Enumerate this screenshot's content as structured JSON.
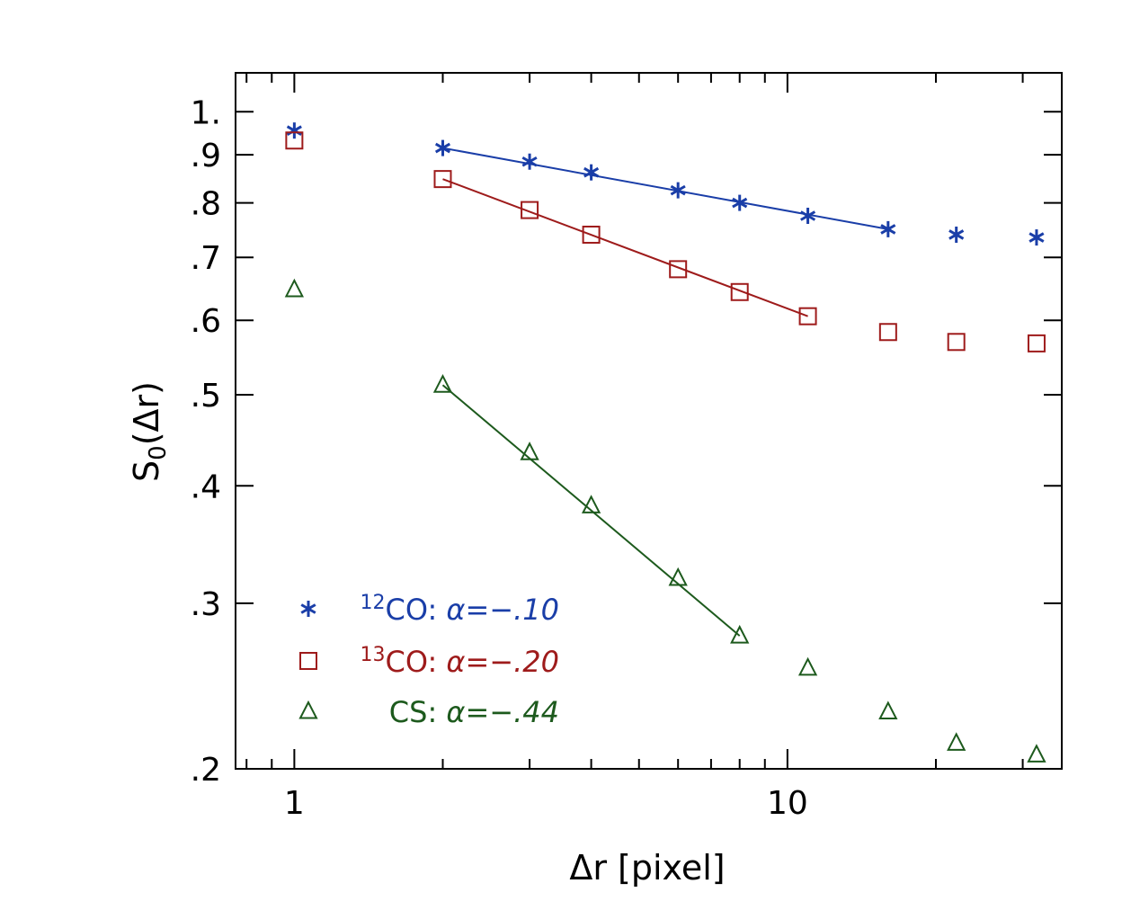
{
  "chart_data": {
    "type": "scatter",
    "title": "",
    "xlabel": "Δr [pixel]",
    "ylabel_main": "S",
    "ylabel_sub": "0",
    "ylabel_tail": "(Δr)",
    "xscale": "log",
    "yscale": "log",
    "xlim": [
      0.76,
      36
    ],
    "ylim": [
      0.2,
      1.1
    ],
    "x_ticks": [
      {
        "value": 1,
        "label": "1"
      },
      {
        "value": 10,
        "label": "10"
      }
    ],
    "y_ticks": [
      {
        "value": 0.2,
        "label": ".2"
      },
      {
        "value": 0.3,
        "label": ".3"
      },
      {
        "value": 0.4,
        "label": ".4"
      },
      {
        "value": 0.5,
        "label": ".5"
      },
      {
        "value": 0.6,
        "label": ".6"
      },
      {
        "value": 0.7,
        "label": ".7"
      },
      {
        "value": 0.8,
        "label": ".8"
      },
      {
        "value": 0.9,
        "label": ".9"
      },
      {
        "value": 1.0,
        "label": "1."
      }
    ],
    "legend_position": "bottom-left",
    "series": [
      {
        "name": "12CO",
        "legend_sup": "12",
        "legend_label": "CO: ",
        "legend_alpha": "α=−.10",
        "color": "#1a3ea8",
        "marker": "asterisk",
        "x": [
          1,
          2,
          3,
          4,
          6,
          8,
          11,
          16,
          22,
          32
        ],
        "y": [
          0.955,
          0.915,
          0.885,
          0.862,
          0.825,
          0.8,
          0.775,
          0.75,
          0.74,
          0.735
        ],
        "fit": {
          "x": [
            2,
            16
          ],
          "y": [
            0.915,
            0.75
          ]
        }
      },
      {
        "name": "13CO",
        "legend_sup": "13",
        "legend_label": "CO: ",
        "legend_alpha": "α=−.20",
        "color": "#9e1b1b",
        "marker": "square",
        "x": [
          1,
          2,
          3,
          4,
          6,
          8,
          11,
          16,
          22,
          32
        ],
        "y": [
          0.932,
          0.848,
          0.786,
          0.74,
          0.68,
          0.643,
          0.606,
          0.583,
          0.569,
          0.567
        ],
        "fit": {
          "x": [
            2,
            11
          ],
          "y": [
            0.848,
            0.606
          ]
        }
      },
      {
        "name": "CS",
        "legend_sup": "",
        "legend_label": "CS: ",
        "legend_alpha": "α=−.44",
        "color": "#1d5a1d",
        "marker": "triangle",
        "x": [
          1,
          2,
          3,
          4,
          6,
          8,
          11,
          16,
          22,
          32
        ],
        "y": [
          0.647,
          0.512,
          0.434,
          0.381,
          0.319,
          0.277,
          0.256,
          0.23,
          0.213,
          0.207
        ],
        "fit": {
          "x": [
            2,
            8
          ],
          "y": [
            0.512,
            0.277
          ]
        }
      }
    ]
  }
}
